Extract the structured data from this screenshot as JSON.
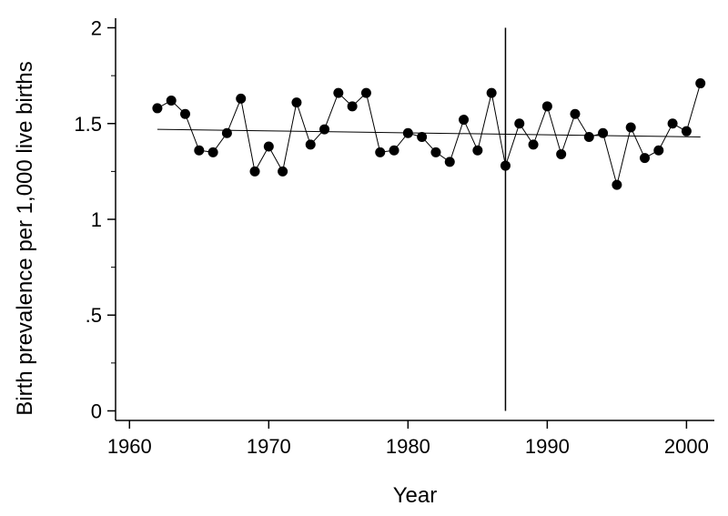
{
  "chart_data": {
    "type": "line",
    "title": "",
    "xlabel": "Year",
    "ylabel": "Birth prevalence per 1,000 live births",
    "xlim": [
      1959,
      2002
    ],
    "ylim": [
      -0.05,
      2.05
    ],
    "x_ticks": [
      1960,
      1970,
      1980,
      1990,
      2000
    ],
    "x_tick_labels": [
      "1960",
      "1970",
      "1980",
      "1990",
      "2000"
    ],
    "y_ticks": [
      0,
      0.5,
      1,
      1.5,
      2
    ],
    "y_tick_labels": [
      "0",
      ".5",
      "1",
      "1.5",
      "2"
    ],
    "y_minor_ticks": [
      0.25,
      0.75,
      1.25,
      1.75
    ],
    "grid": false,
    "marker_color": "#000000",
    "series": [
      {
        "x": [
          1962,
          1963,
          1964,
          1965,
          1966,
          1967,
          1968,
          1969,
          1970,
          1971,
          1972,
          1973,
          1974,
          1975,
          1976,
          1977,
          1978,
          1979,
          1980,
          1981,
          1982,
          1983,
          1984,
          1985,
          1986,
          1987,
          1988,
          1989,
          1990,
          1991,
          1992,
          1993,
          1994,
          1995,
          1996,
          1997,
          1998,
          1999,
          2000,
          2001
        ],
        "y": [
          1.58,
          1.62,
          1.55,
          1.36,
          1.35,
          1.45,
          1.63,
          1.25,
          1.38,
          1.25,
          1.61,
          1.39,
          1.47,
          1.66,
          1.59,
          1.66,
          1.35,
          1.36,
          1.45,
          1.43,
          1.35,
          1.3,
          1.52,
          1.36,
          1.66,
          1.28,
          1.5,
          1.39,
          1.59,
          1.34,
          1.55,
          1.43,
          1.45,
          1.18,
          1.48,
          1.32,
          1.36,
          1.5,
          1.46,
          1.71
        ]
      }
    ],
    "trend_line": {
      "x": [
        1962,
        2001
      ],
      "y": [
        1.47,
        1.43
      ]
    },
    "reference_line_x": 1987
  }
}
